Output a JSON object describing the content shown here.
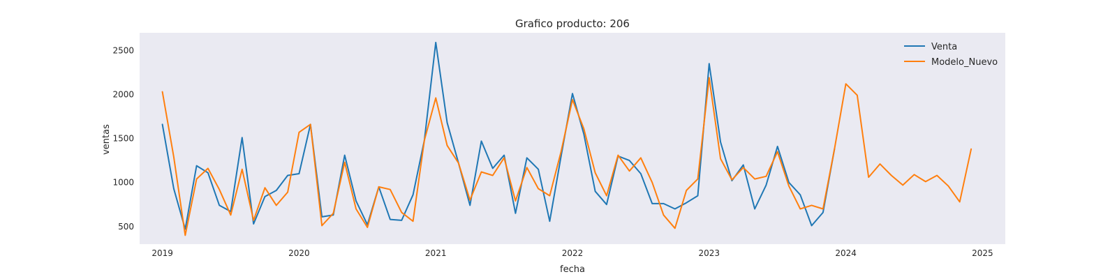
{
  "chart_data": {
    "type": "line",
    "title": "Grafico producto: 206",
    "xlabel": "fecha",
    "ylabel": "ventas",
    "x_ticks": [
      "2019",
      "2020",
      "2021",
      "2022",
      "2023",
      "2024",
      "2025"
    ],
    "y_ticks": [
      500,
      1000,
      1500,
      2000,
      2500
    ],
    "xlim": [
      "2018-11-01",
      "2025-03-01"
    ],
    "ylim": [
      300,
      2700
    ],
    "grid": false,
    "legend_position": "top-right",
    "x": [
      "2019-01",
      "2019-02",
      "2019-03",
      "2019-04",
      "2019-05",
      "2019-06",
      "2019-07",
      "2019-08",
      "2019-09",
      "2019-10",
      "2019-11",
      "2019-12",
      "2020-01",
      "2020-02",
      "2020-03",
      "2020-04",
      "2020-05",
      "2020-06",
      "2020-07",
      "2020-08",
      "2020-09",
      "2020-10",
      "2020-11",
      "2020-12",
      "2021-01",
      "2021-02",
      "2021-03",
      "2021-04",
      "2021-05",
      "2021-06",
      "2021-07",
      "2021-08",
      "2021-09",
      "2021-10",
      "2021-11",
      "2021-12",
      "2022-01",
      "2022-02",
      "2022-03",
      "2022-04",
      "2022-05",
      "2022-06",
      "2022-07",
      "2022-08",
      "2022-09",
      "2022-10",
      "2022-11",
      "2022-12",
      "2023-01",
      "2023-02",
      "2023-03",
      "2023-04",
      "2023-05",
      "2023-06",
      "2023-07",
      "2023-08",
      "2023-09",
      "2023-10",
      "2023-11",
      "2023-12",
      "2024-01",
      "2024-02",
      "2024-03",
      "2024-04",
      "2024-05",
      "2024-06",
      "2024-07",
      "2024-08",
      "2024-09",
      "2024-10",
      "2024-11",
      "2024-12"
    ],
    "series": [
      {
        "name": "Venta",
        "color": "#1f77b4",
        "values": [
          1660,
          930,
          470,
          1190,
          1110,
          740,
          670,
          1510,
          530,
          840,
          910,
          1080,
          1100,
          1660,
          610,
          630,
          1310,
          790,
          520,
          950,
          580,
          570,
          860,
          1480,
          2590,
          1680,
          1220,
          740,
          1470,
          1160,
          1310,
          650,
          1280,
          1150,
          560,
          1300,
          2010,
          1550,
          900,
          750,
          1300,
          1250,
          1100,
          760,
          760,
          700,
          770,
          850,
          2350,
          1460,
          1020,
          1200,
          700,
          970,
          1410,
          1000,
          860,
          510,
          660,
          1380,
          null,
          null,
          null,
          null,
          null,
          null,
          null,
          null,
          null,
          null,
          null,
          null
        ]
      },
      {
        "name": "Modelo_Nuevo",
        "color": "#ff7f0e",
        "values": [
          2030,
          1290,
          400,
          1040,
          1160,
          920,
          630,
          1150,
          570,
          940,
          740,
          890,
          1570,
          1660,
          510,
          650,
          1230,
          700,
          490,
          950,
          920,
          660,
          560,
          1480,
          1960,
          1420,
          1220,
          800,
          1120,
          1080,
          1280,
          790,
          1170,
          930,
          850,
          1350,
          1940,
          1610,
          1110,
          850,
          1310,
          1130,
          1280,
          1000,
          630,
          480,
          910,
          1040,
          2190,
          1270,
          1030,
          1170,
          1040,
          1070,
          1350,
          960,
          700,
          740,
          700,
          1380,
          2120,
          1990,
          1060,
          1210,
          1080,
          970,
          1090,
          1010,
          1080,
          960,
          780,
          1380
        ]
      }
    ]
  }
}
